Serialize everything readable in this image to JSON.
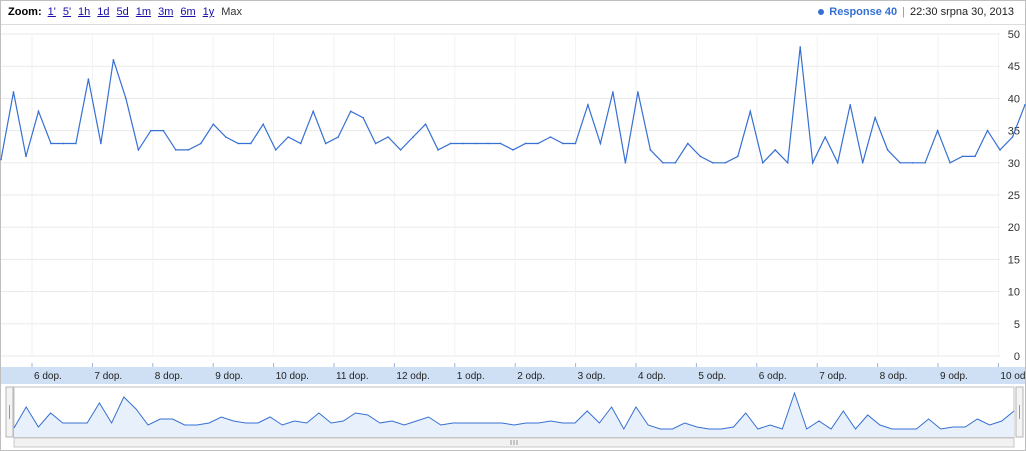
{
  "zoom": {
    "label": "Zoom:",
    "options": [
      "1'",
      "5'",
      "1h",
      "1d",
      "5d",
      "1m",
      "3m",
      "6m",
      "1y"
    ],
    "max_label": "Max"
  },
  "legend": {
    "series_name": "Response 40",
    "datetime": "22:30 srpna 30, 2013",
    "color": "#3670d3"
  },
  "colors": {
    "line": "#3670d3",
    "axis_band": "#cfe0f5",
    "navigator_fill": "#e8f1fb",
    "grid": "#eaeaea"
  },
  "chart_data": {
    "type": "line",
    "title": "",
    "xlabel": "",
    "ylabel": "",
    "ylim": [
      0,
      50
    ],
    "y_ticks": [
      0,
      5,
      10,
      15,
      20,
      25,
      30,
      35,
      40,
      45,
      50
    ],
    "x_tick_labels": [
      "6 dop.",
      "7 dop.",
      "8 dop.",
      "9 dop.",
      "10 dop.",
      "11 dop.",
      "12 odp.",
      "1 odp.",
      "2 odp.",
      "3 odp.",
      "4 odp.",
      "5 odp.",
      "6 odp.",
      "7 odp.",
      "8 odp.",
      "9 odp.",
      "10 od"
    ],
    "grid": true,
    "series": [
      {
        "name": "Response 40",
        "values": [
          30.5,
          41,
          31,
          38,
          33,
          33,
          33,
          43,
          33,
          46,
          40,
          32,
          35,
          35,
          32,
          32,
          33,
          36,
          34,
          33,
          33,
          36,
          32,
          34,
          33,
          38,
          33,
          34,
          38,
          37,
          33,
          34,
          32,
          34,
          36,
          32,
          33,
          33,
          33,
          33,
          33,
          32,
          33,
          33,
          34,
          33,
          33,
          39,
          33,
          41,
          30,
          41,
          32,
          30,
          30,
          33,
          31,
          30,
          30,
          31,
          38,
          30,
          32,
          30,
          48,
          30,
          34,
          30,
          39,
          30,
          37,
          32,
          30,
          30,
          30,
          35,
          30,
          31,
          31,
          35,
          32,
          34,
          39
        ]
      }
    ]
  }
}
